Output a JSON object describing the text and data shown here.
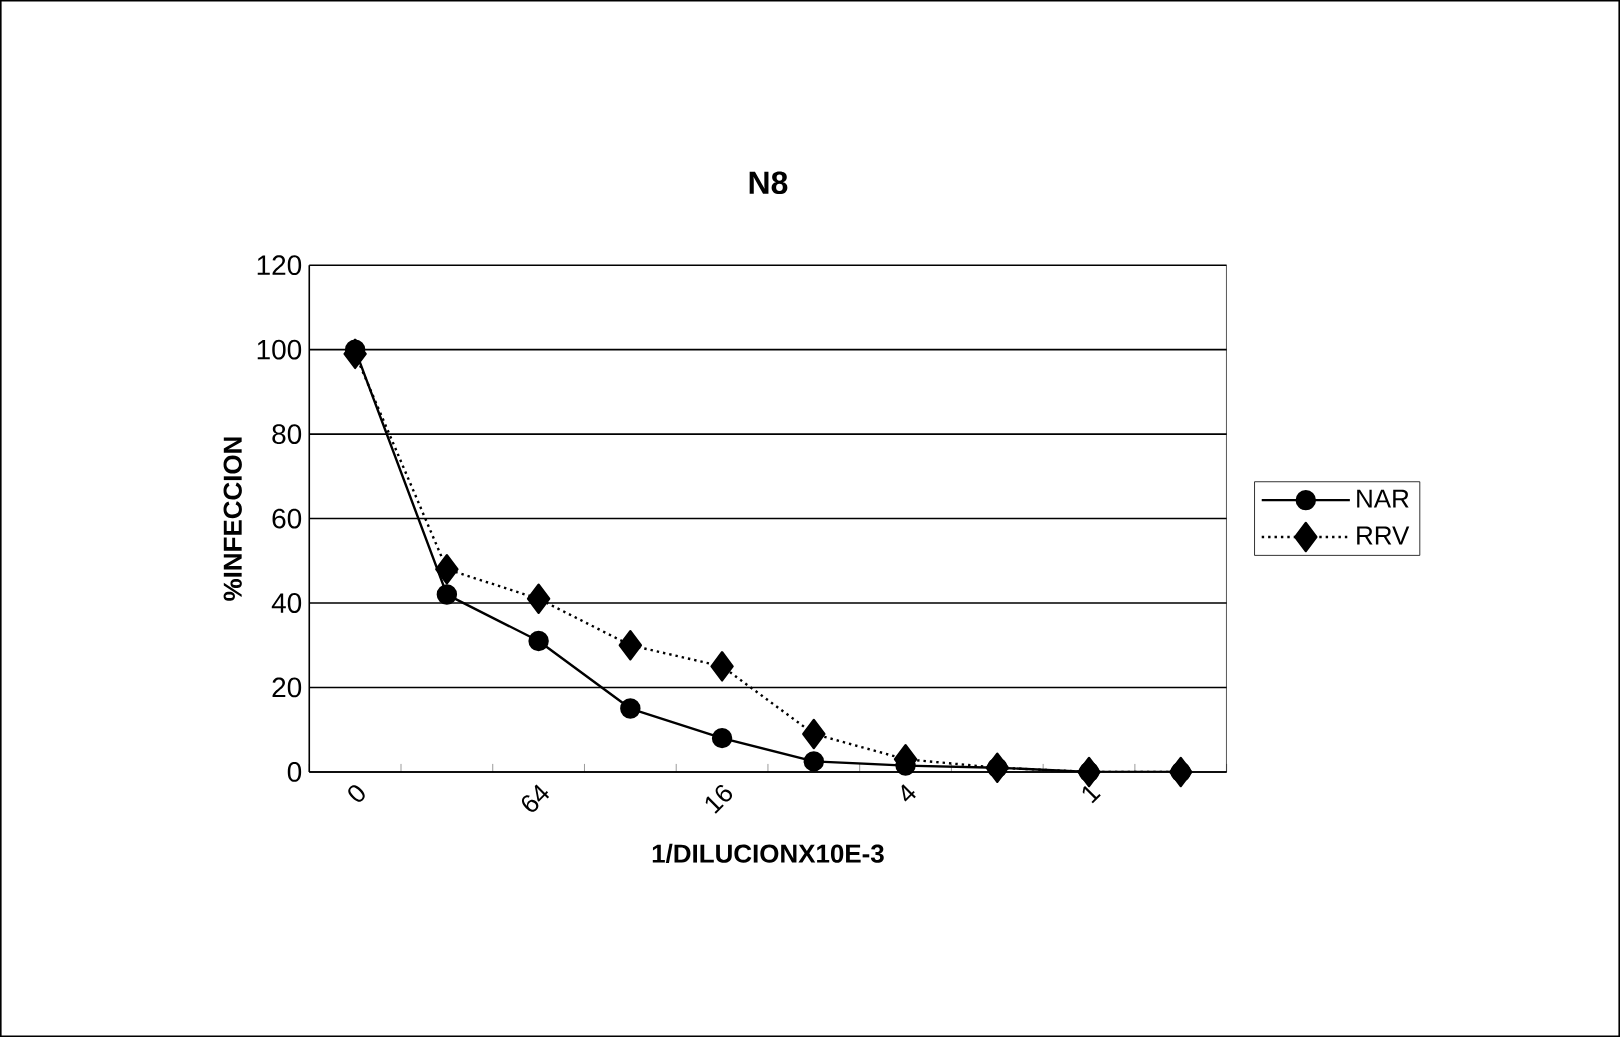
{
  "chart_data": {
    "type": "line",
    "title": "N8",
    "xlabel": "1/DILUCIONX10E-3",
    "ylabel": "%INFECCION",
    "categories": [
      "0",
      null,
      "64",
      null,
      "16",
      null,
      "4",
      null,
      "1",
      null
    ],
    "series": [
      {
        "name": "NAR",
        "color": "#000000",
        "marker": "circle",
        "line_style": "solid",
        "values": [
          100,
          42,
          31,
          15,
          8,
          2.5,
          1.5,
          1,
          0,
          0
        ]
      },
      {
        "name": "RRV",
        "color": "#000000",
        "marker": "diamond",
        "line_style": "dotted",
        "values": [
          99,
          48,
          41,
          30,
          25,
          9,
          3,
          1,
          0,
          0
        ]
      }
    ],
    "ylim": [
      0,
      120
    ],
    "yticks": [
      0,
      20,
      40,
      60,
      80,
      100,
      120
    ],
    "grid": "y",
    "legend": "right"
  }
}
